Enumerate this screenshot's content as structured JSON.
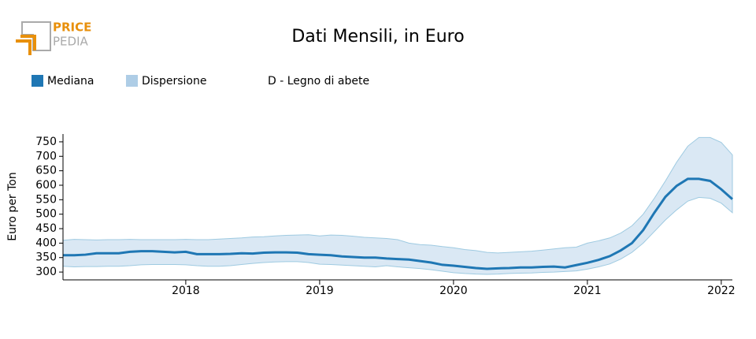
{
  "logo": {
    "top": "PRICE",
    "bottom": "PEDIA"
  },
  "chart_data": {
    "type": "line",
    "title": "Dati Mensili, in Euro",
    "subtitle": "D - Legno di abete",
    "y_label": "Euro per Ton",
    "x": [
      2017.083,
      2017.167,
      2017.25,
      2017.333,
      2017.417,
      2017.5,
      2017.583,
      2017.667,
      2017.75,
      2017.833,
      2017.917,
      2018,
      2018.083,
      2018.167,
      2018.25,
      2018.333,
      2018.417,
      2018.5,
      2018.583,
      2018.667,
      2018.75,
      2018.833,
      2018.917,
      2019,
      2019.083,
      2019.167,
      2019.25,
      2019.333,
      2019.417,
      2019.5,
      2019.583,
      2019.667,
      2019.75,
      2019.833,
      2019.917,
      2020,
      2020.083,
      2020.167,
      2020.25,
      2020.333,
      2020.417,
      2020.5,
      2020.583,
      2020.667,
      2020.75,
      2020.833,
      2020.917,
      2021,
      2021.083,
      2021.167,
      2021.25,
      2021.333,
      2021.417,
      2021.5,
      2021.583,
      2021.667,
      2021.75,
      2021.833,
      2021.917,
      2022,
      2022.083
    ],
    "series": [
      {
        "name": "Mediana",
        "color": "#1f77b4",
        "values": [
          358,
          358,
          360,
          365,
          365,
          365,
          370,
          372,
          372,
          370,
          368,
          370,
          362,
          362,
          362,
          363,
          365,
          364,
          367,
          368,
          368,
          367,
          362,
          360,
          358,
          354,
          352,
          350,
          350,
          347,
          345,
          343,
          338,
          333,
          325,
          322,
          318,
          314,
          311,
          313,
          314,
          316,
          316,
          318,
          319,
          316,
          324,
          332,
          342,
          355,
          375,
          400,
          445,
          505,
          560,
          598,
          622,
          622,
          615,
          586,
          552
        ]
      },
      {
        "name": "Dispersione",
        "color": "#aecde6",
        "edge_color": "#9ecae1",
        "high": [
          410,
          413,
          412,
          411,
          412,
          412,
          413,
          412,
          412,
          412,
          412,
          413,
          412,
          412,
          414,
          416,
          418,
          421,
          422,
          425,
          427,
          428,
          429,
          425,
          428,
          427,
          424,
          420,
          418,
          416,
          412,
          400,
          395,
          393,
          388,
          384,
          378,
          374,
          368,
          366,
          368,
          370,
          372,
          376,
          380,
          384,
          386,
          400,
          408,
          418,
          435,
          460,
          500,
          555,
          615,
          680,
          735,
          765,
          765,
          748,
          705
        ],
        "low": [
          320,
          318,
          319,
          319,
          320,
          320,
          322,
          325,
          326,
          326,
          326,
          325,
          322,
          320,
          320,
          322,
          326,
          330,
          333,
          335,
          336,
          336,
          333,
          327,
          326,
          324,
          322,
          320,
          318,
          322,
          318,
          315,
          312,
          308,
          303,
          298,
          295,
          293,
          292,
          293,
          295,
          296,
          297,
          299,
          300,
          302,
          304,
          310,
          318,
          328,
          345,
          368,
          400,
          440,
          480,
          515,
          545,
          558,
          555,
          538,
          505
        ]
      }
    ],
    "xlim": [
      2017.083,
      2022.083
    ],
    "xticks": [
      2018,
      2019,
      2020,
      2021,
      2022
    ],
    "ylim": [
      273,
      777
    ],
    "yticks": [
      300,
      350,
      400,
      450,
      500,
      550,
      600,
      650,
      700,
      750
    ]
  }
}
